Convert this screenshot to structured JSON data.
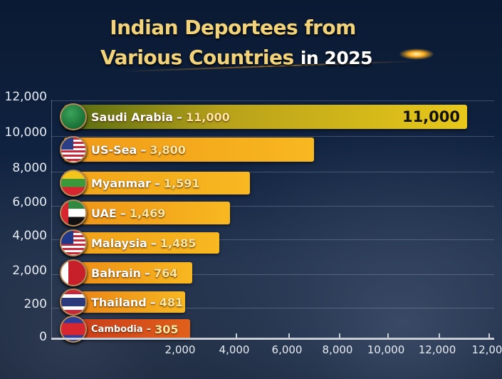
{
  "chart_data": {
    "type": "bar",
    "orientation": "horizontal",
    "title_line1": "Indian Deportees from",
    "title_line2_gold": "Various Countries",
    "title_line2_white": "in 2025",
    "separator": "–",
    "bars": [
      {
        "country": "Saudi Arabia",
        "value": 11000,
        "value_label": "11,000",
        "flag": "saudi-arabia-flag",
        "color": "#b8a21a"
      },
      {
        "country": "US-Sea",
        "value": 3800,
        "value_label": "3,800",
        "flag": "usa-flag",
        "color": "#f09a18"
      },
      {
        "country": "Myanmar",
        "value": 1591,
        "value_label": "1,591",
        "flag": "myanmar-flag",
        "color": "#f0a418"
      },
      {
        "country": "UAE",
        "value": 1469,
        "value_label": "1,469",
        "flag": "uae-flag",
        "color": "#ee9216"
      },
      {
        "country": "Malaysia",
        "value": 1485,
        "value_label": "1,485",
        "flag": "malaysia-flag",
        "color": "#f0a01a"
      },
      {
        "country": "Bahrain",
        "value": 764,
        "value_label": "764",
        "flag": "bahrain-flag",
        "color": "#ec8a16"
      },
      {
        "country": "Thailand",
        "value": 481,
        "value_label": "481",
        "flag": "thailand-flag",
        "color": "#e87e14"
      },
      {
        "country": "Cambodia",
        "value": 305,
        "value_label": "305",
        "flag": "cambodia-flag",
        "color": "#d8501a"
      }
    ],
    "end_label": "11,000",
    "y_ticks": [
      "12,000",
      "10,000",
      "8,000",
      "6,000",
      "4,000",
      "2,000",
      "200",
      "0"
    ],
    "x_ticks": [
      "2,000",
      "4,000",
      "6,000",
      "8,000",
      "10,000",
      "12,000",
      "12,00"
    ],
    "grid": true
  }
}
